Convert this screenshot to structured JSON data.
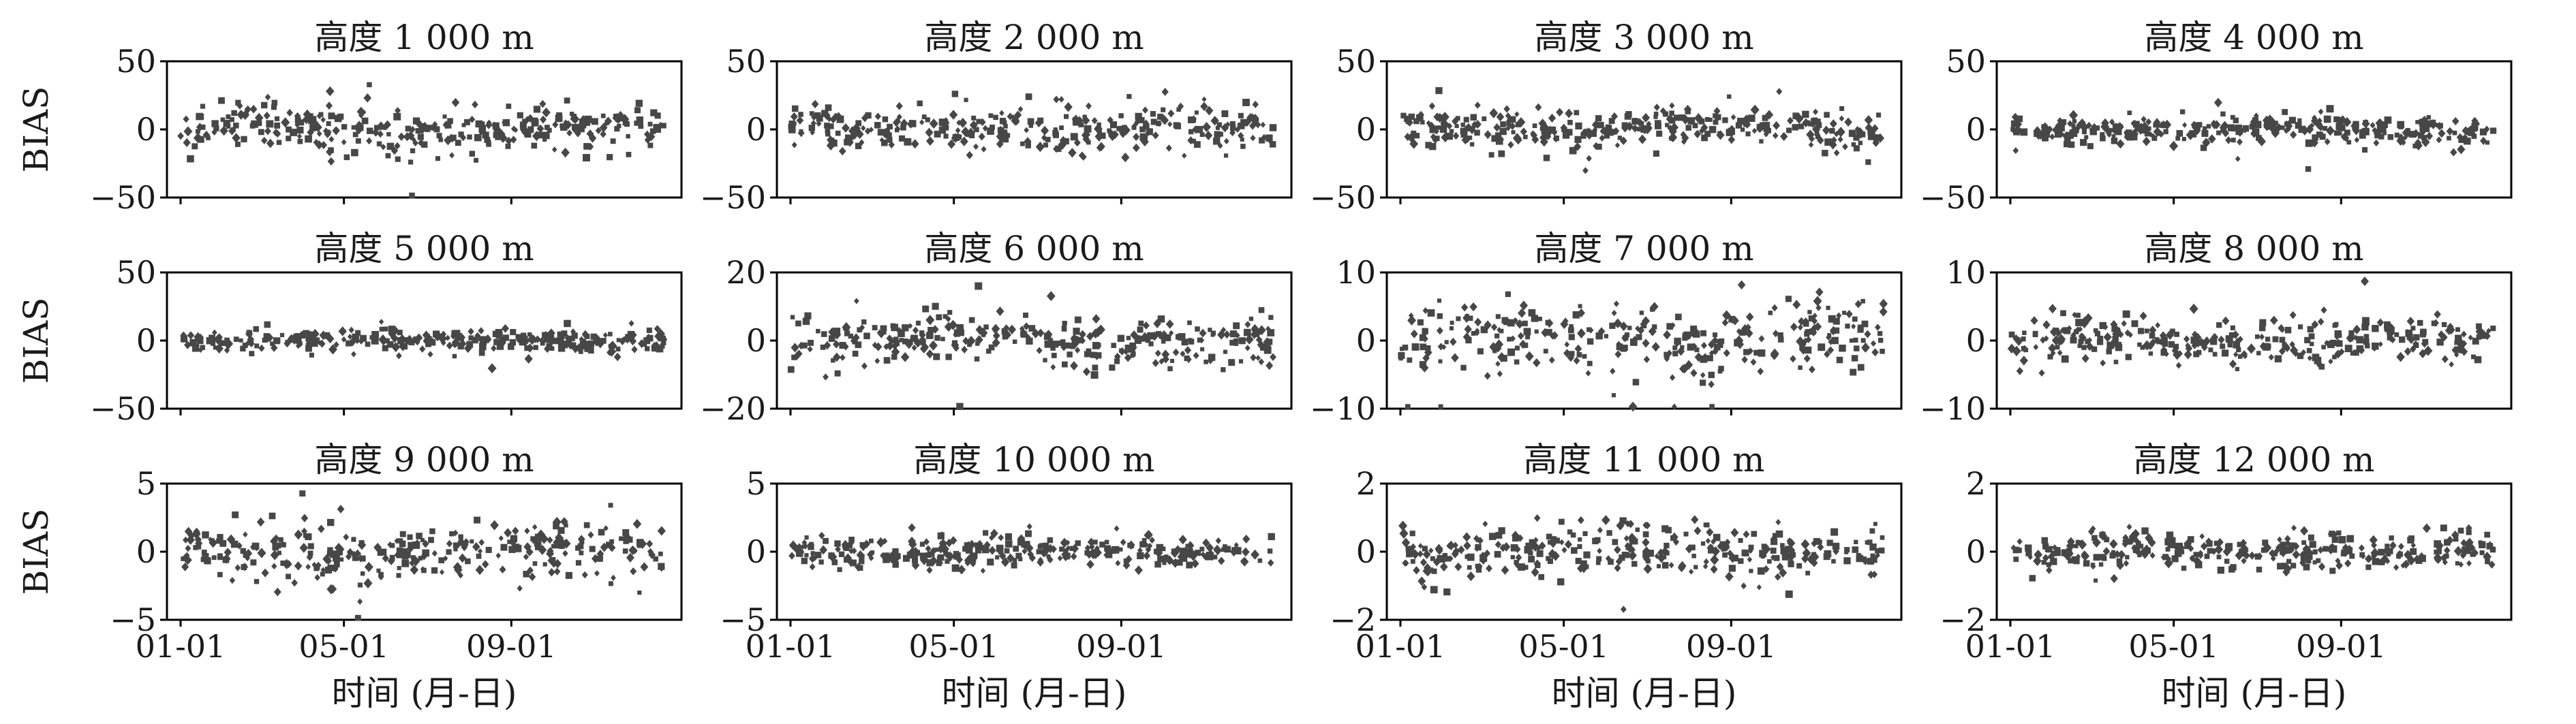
{
  "figure": {
    "ylabel": "BIAS",
    "xlabel": "时间 (月-日)",
    "marker_color": "#474747",
    "x_ticks": [
      "01-01",
      "05-01",
      "09-01"
    ]
  },
  "chart_data": [
    {
      "type": "scatter",
      "title": "高度 1 000 m",
      "ylim": [
        -50,
        50
      ],
      "yticks": [
        "50",
        "0",
        "−50"
      ],
      "x_range": [
        "01-01",
        "12-31"
      ],
      "spread": 8,
      "wide": 14,
      "ylabel": "BIAS",
      "xlabel": ""
    },
    {
      "type": "scatter",
      "title": "高度 2 000 m",
      "ylim": [
        -50,
        50
      ],
      "yticks": [
        "50",
        "0",
        "−50"
      ],
      "x_range": [
        "01-01",
        "12-31"
      ],
      "spread": 8,
      "wide": 14,
      "ylabel": "",
      "xlabel": ""
    },
    {
      "type": "scatter",
      "title": "高度 3 000 m",
      "ylim": [
        -50,
        50
      ],
      "yticks": [
        "50",
        "0",
        "−50"
      ],
      "x_range": [
        "01-01",
        "12-31"
      ],
      "spread": 7,
      "wide": 13,
      "ylabel": "",
      "xlabel": ""
    },
    {
      "type": "scatter",
      "title": "高度 4 000 m",
      "ylim": [
        -50,
        50
      ],
      "yticks": [
        "50",
        "0",
        "−50"
      ],
      "x_range": [
        "01-01",
        "12-31"
      ],
      "spread": 5,
      "wide": 9,
      "ylabel": "",
      "xlabel": ""
    },
    {
      "type": "scatter",
      "title": "高度 5 000 m",
      "ylim": [
        -50,
        50
      ],
      "yticks": [
        "50",
        "0",
        "−50"
      ],
      "x_range": [
        "01-01",
        "12-31"
      ],
      "spread": 4,
      "wide": 7,
      "ylabel": "BIAS",
      "xlabel": ""
    },
    {
      "type": "scatter",
      "title": "高度 6 000 m",
      "ylim": [
        -20,
        20
      ],
      "yticks": [
        "20",
        "0",
        "−20"
      ],
      "x_range": [
        "01-01",
        "12-31"
      ],
      "spread": 3.5,
      "wide": 6,
      "ylabel": "",
      "xlabel": ""
    },
    {
      "type": "scatter",
      "title": "高度 7 000 m",
      "ylim": [
        -10,
        10
      ],
      "yticks": [
        "10",
        "0",
        "−10"
      ],
      "x_range": [
        "01-01",
        "12-31"
      ],
      "spread": 2.5,
      "wide": 4.5,
      "ylabel": "",
      "xlabel": ""
    },
    {
      "type": "scatter",
      "title": "高度 8 000 m",
      "ylim": [
        -10,
        10
      ],
      "yticks": [
        "10",
        "0",
        "−10"
      ],
      "x_range": [
        "01-01",
        "12-31"
      ],
      "spread": 1.5,
      "wide": 2.8,
      "ylabel": "",
      "xlabel": ""
    },
    {
      "type": "scatter",
      "title": "高度 9 000 m",
      "ylim": [
        -5,
        5
      ],
      "yticks": [
        "5",
        "0",
        "−5"
      ],
      "x_range": [
        "01-01",
        "12-31"
      ],
      "spread": 1.0,
      "wide": 1.9,
      "ylabel": "BIAS",
      "xlabel": "时间 (月-日)"
    },
    {
      "type": "scatter",
      "title": "高度 10 000 m",
      "ylim": [
        -5,
        5
      ],
      "yticks": [
        "5",
        "0",
        "−5"
      ],
      "x_range": [
        "01-01",
        "12-31"
      ],
      "spread": 0.5,
      "wide": 0.9,
      "ylabel": "",
      "xlabel": "时间 (月-日)"
    },
    {
      "type": "scatter",
      "title": "高度 11 000 m",
      "ylim": [
        -2,
        2
      ],
      "yticks": [
        "2",
        "0",
        "−2"
      ],
      "x_range": [
        "01-01",
        "12-31"
      ],
      "spread": 0.35,
      "wide": 0.6,
      "ylabel": "",
      "xlabel": "时间 (月-日)"
    },
    {
      "type": "scatter",
      "title": "高度 12 000 m",
      "ylim": [
        -2,
        2
      ],
      "yticks": [
        "2",
        "0",
        "−2"
      ],
      "x_range": [
        "01-01",
        "12-31"
      ],
      "spread": 0.25,
      "wide": 0.45,
      "ylabel": "",
      "xlabel": "时间 (月-日)"
    }
  ]
}
